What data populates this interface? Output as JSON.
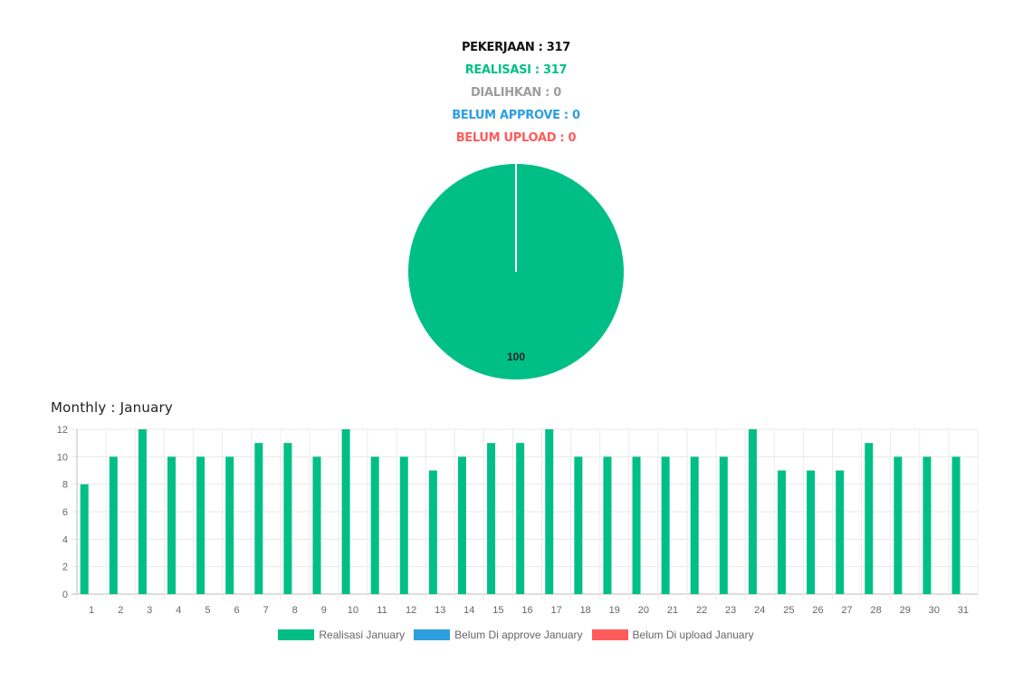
{
  "summary": {
    "pekerjaan": "PEKERJAAN : 317",
    "realisasi": "REALISASI : 317",
    "dialihkan": "DIALIHKAN : 0",
    "belum_approve": "BELUM APPROVE : 0",
    "belum_upload": "BELUM UPLOAD : 0"
  },
  "colors": {
    "pekerjaan": "#111111",
    "realisasi": "#00bf86",
    "dialihkan": "#9e9e9e",
    "belum_approve": "#2d9ee0",
    "belum_upload": "#ff5b5b"
  },
  "chart_data": [
    {
      "type": "pie",
      "labels": [
        "Realisasi",
        "Belum Approve",
        "Belum Upload"
      ],
      "values": [
        100,
        0,
        0
      ],
      "data_labels": [
        "100"
      ],
      "colors": [
        "#00bf86",
        "#2d9ee0",
        "#ff5b5b"
      ]
    },
    {
      "type": "bar",
      "title": "Monthly : January",
      "categories": [
        "1",
        "2",
        "3",
        "4",
        "5",
        "6",
        "7",
        "8",
        "9",
        "10",
        "11",
        "12",
        "13",
        "14",
        "15",
        "16",
        "17",
        "18",
        "19",
        "20",
        "21",
        "22",
        "23",
        "24",
        "25",
        "26",
        "27",
        "28",
        "29",
        "30",
        "31"
      ],
      "series": [
        {
          "name": "Realisasi January",
          "color": "#00bf86",
          "values": [
            8,
            10,
            12,
            10,
            10,
            10,
            11,
            11,
            10,
            12,
            10,
            10,
            9,
            10,
            11,
            11,
            12,
            10,
            10,
            10,
            10,
            10,
            10,
            12,
            9,
            9,
            9,
            11,
            10,
            10,
            10
          ]
        },
        {
          "name": "Belum Di approve January",
          "color": "#2d9ee0",
          "values": [
            0,
            0,
            0,
            0,
            0,
            0,
            0,
            0,
            0,
            0,
            0,
            0,
            0,
            0,
            0,
            0,
            0,
            0,
            0,
            0,
            0,
            0,
            0,
            0,
            0,
            0,
            0,
            0,
            0,
            0,
            0
          ]
        },
        {
          "name": "Belum Di upload January",
          "color": "#ff5b5b",
          "values": [
            0,
            0,
            0,
            0,
            0,
            0,
            0,
            0,
            0,
            0,
            0,
            0,
            0,
            0,
            0,
            0,
            0,
            0,
            0,
            0,
            0,
            0,
            0,
            0,
            0,
            0,
            0,
            0,
            0,
            0,
            0
          ]
        }
      ],
      "ylim": [
        0,
        12
      ],
      "yticks": [
        0,
        2,
        4,
        6,
        8,
        10,
        12
      ],
      "grid": true,
      "legend": "bottom"
    }
  ]
}
